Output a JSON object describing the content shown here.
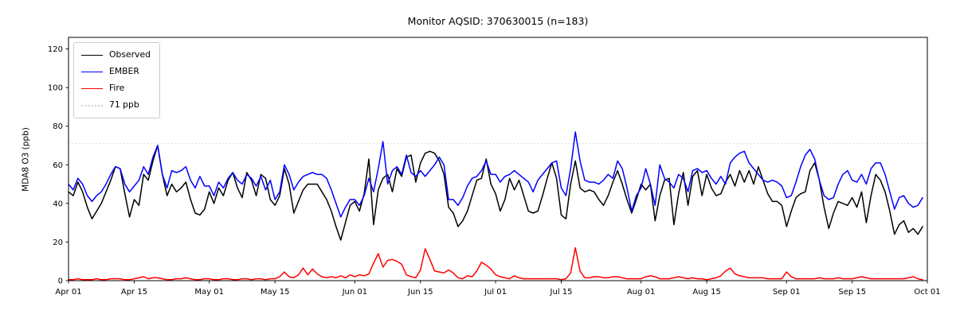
{
  "figure": {
    "title": "Monitor AQSID: 370630015 (n=183)",
    "ylabel": "MDA8 O3 (ppb)"
  },
  "chart_data": {
    "type": "line",
    "title": "Monitor AQSID: 370630015 (n=183)",
    "xlabel": "",
    "ylabel": "MDA8 O3 (ppb)",
    "n_points": 183,
    "x_start": "Apr 01",
    "x_end": "Sep 30",
    "x_tick_labels": [
      "Apr 01",
      "Apr 15",
      "May 01",
      "May 15",
      "Jun 01",
      "Jun 15",
      "Jul 01",
      "Jul 15",
      "Aug 01",
      "Aug 15",
      "Sep 01",
      "Sep 15",
      "Oct 01"
    ],
    "x_tick_days": [
      0,
      14,
      30,
      44,
      61,
      75,
      91,
      105,
      122,
      136,
      153,
      167,
      183
    ],
    "x_total_days": 183,
    "y_ticks": [
      0,
      20,
      40,
      60,
      80,
      100,
      120
    ],
    "ylim": [
      0,
      126
    ],
    "grid": false,
    "background": "#ffffff",
    "reference_line": {
      "value": 71,
      "label": "71 ppb",
      "style": "dotted",
      "color": "#d3d3d3"
    },
    "legend": {
      "position": "upper-left",
      "items": [
        {
          "label": "Observed",
          "color": "#000000",
          "style": "solid"
        },
        {
          "label": "EMBER",
          "color": "#0000ff",
          "style": "solid"
        },
        {
          "label": "Fire",
          "color": "#ff0000",
          "style": "solid"
        },
        {
          "label": "71 ppb",
          "color": "#d3d3d3",
          "style": "dotted"
        }
      ]
    },
    "series": [
      {
        "name": "Observed",
        "color": "#000000",
        "style": "solid",
        "values": [
          46,
          44,
          51,
          46,
          38,
          32,
          36,
          40,
          46,
          52,
          59,
          58,
          45,
          33,
          42,
          39,
          55,
          52,
          62,
          70,
          55,
          44,
          50,
          46,
          48,
          51,
          42,
          35,
          34,
          37,
          46,
          40,
          48,
          44,
          52,
          56,
          48,
          43,
          56,
          52,
          44,
          55,
          53,
          42,
          39,
          44,
          58,
          50,
          35,
          41,
          47,
          50,
          50,
          50,
          46,
          42,
          36,
          28,
          21,
          30,
          39,
          41,
          36,
          45,
          63,
          29,
          47,
          53,
          55,
          46,
          58,
          54,
          64,
          65,
          51,
          61,
          66,
          67,
          66,
          62,
          55,
          38,
          35,
          28,
          31,
          36,
          44,
          52,
          53,
          63,
          50,
          45,
          36,
          42,
          53,
          47,
          52,
          44,
          36,
          35,
          36,
          44,
          53,
          61,
          53,
          34,
          32,
          50,
          62,
          48,
          46,
          47,
          46,
          42,
          39,
          44,
          51,
          57,
          50,
          42,
          35,
          42,
          50,
          47,
          50,
          31,
          44,
          52,
          53,
          29,
          45,
          56,
          39,
          54,
          57,
          44,
          55,
          48,
          44,
          45,
          51,
          55,
          49,
          57,
          51,
          57,
          50,
          59,
          52,
          45,
          41,
          41,
          39,
          28,
          36,
          43,
          45,
          46,
          57,
          61,
          52,
          38,
          27,
          35,
          41,
          40,
          39,
          43,
          38,
          46,
          30,
          44,
          55,
          52,
          46,
          36,
          24,
          29,
          31,
          25,
          27,
          24,
          28
        ]
      },
      {
        "name": "EMBER",
        "color": "#0000ff",
        "style": "solid",
        "values": [
          50,
          47,
          53,
          50,
          44,
          41,
          44,
          46,
          50,
          55,
          59,
          58,
          50,
          46,
          49,
          52,
          59,
          55,
          64,
          70,
          55,
          48,
          57,
          56,
          57,
          59,
          52,
          48,
          54,
          49,
          49,
          44,
          51,
          48,
          53,
          56,
          52,
          50,
          55,
          53,
          49,
          54,
          47,
          52,
          42,
          46,
          60,
          55,
          47,
          51,
          54,
          55,
          56,
          55,
          55,
          53,
          47,
          40,
          33,
          38,
          42,
          42,
          39,
          44,
          53,
          46,
          58,
          72,
          50,
          57,
          59,
          55,
          65,
          56,
          54,
          57,
          54,
          57,
          60,
          64,
          60,
          42,
          42,
          39,
          43,
          49,
          53,
          54,
          57,
          62,
          55,
          55,
          51,
          54,
          55,
          57,
          55,
          53,
          51,
          46,
          52,
          55,
          58,
          61,
          62,
          48,
          44,
          58,
          77,
          62,
          52,
          51,
          51,
          50,
          52,
          55,
          53,
          62,
          58,
          48,
          36,
          44,
          48,
          58,
          50,
          39,
          60,
          53,
          51,
          48,
          55,
          53,
          46,
          57,
          58,
          56,
          57,
          53,
          50,
          54,
          50,
          61,
          64,
          66,
          67,
          61,
          58,
          55,
          52,
          51,
          52,
          51,
          49,
          43,
          44,
          51,
          59,
          65,
          68,
          63,
          52,
          44,
          42,
          43,
          50,
          55,
          57,
          52,
          51,
          55,
          50,
          58,
          61,
          61,
          55,
          46,
          37,
          43,
          44,
          40,
          38,
          39,
          43
        ]
      },
      {
        "name": "Fire",
        "color": "#ff0000",
        "style": "solid",
        "values": [
          0.5,
          0.5,
          1,
          0.5,
          0.5,
          0.5,
          1,
          0.5,
          0.5,
          1,
          1,
          1,
          0.5,
          0.5,
          1,
          1.5,
          2,
          1,
          1.5,
          1.5,
          1,
          0.5,
          0.5,
          1,
          1,
          1.5,
          1,
          0.5,
          0.5,
          1,
          1,
          0.5,
          0.5,
          1,
          1,
          0.5,
          0.5,
          1,
          1,
          0.5,
          1,
          1,
          0.5,
          1,
          1,
          2,
          4.5,
          2,
          1.5,
          3,
          6.5,
          3,
          6,
          3.5,
          2,
          1.5,
          2,
          1.5,
          2.5,
          1.5,
          3,
          2,
          3,
          2.5,
          3.5,
          9,
          14,
          7,
          10.5,
          11,
          10,
          8.5,
          3,
          2,
          1.5,
          5.5,
          16.5,
          11,
          5,
          4.5,
          4,
          5.5,
          4,
          1.5,
          1,
          2.5,
          2,
          5,
          9.5,
          8,
          6,
          3,
          2,
          1.5,
          1,
          2.5,
          1.5,
          1,
          1,
          1,
          1,
          1,
          1,
          1,
          1,
          0.5,
          1,
          4,
          17,
          5,
          1.5,
          1.5,
          2,
          2,
          1.5,
          1.5,
          2,
          2,
          1.5,
          1,
          1,
          1,
          1,
          2,
          2.5,
          2,
          1,
          1,
          1,
          1.5,
          2,
          1.5,
          1,
          1.5,
          1,
          1,
          0.5,
          1,
          1.5,
          2.5,
          5,
          6.5,
          3.5,
          2.5,
          2,
          1.5,
          1.5,
          1.5,
          1.5,
          1,
          1,
          1,
          1,
          4.5,
          2,
          1,
          1,
          1,
          1,
          1,
          1.5,
          1,
          1,
          1,
          1.5,
          1,
          1,
          1,
          1.5,
          2,
          1.5,
          1,
          1,
          1,
          1,
          1,
          1,
          1,
          1,
          1.5,
          2,
          1,
          0.5
        ]
      }
    ]
  }
}
